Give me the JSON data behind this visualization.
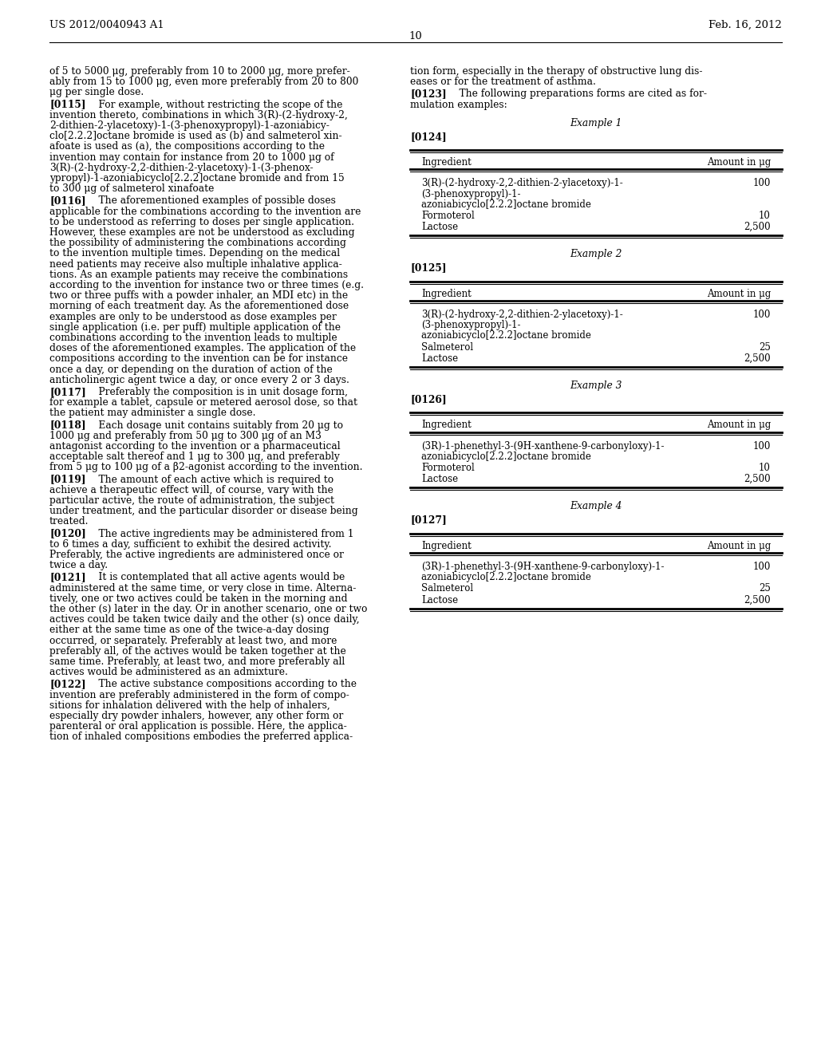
{
  "bg_color": "#ffffff",
  "header_left": "US 2012/0040943 A1",
  "header_right": "Feb. 16, 2012",
  "page_number": "10",
  "intro_lines": [
    "of 5 to 5000 μg, preferably from 10 to 2000 μg, more prefer-",
    "ably from 15 to 1000 μg, even more preferably from 20 to 800",
    "μg per single dose."
  ],
  "left_paragraphs": [
    {
      "tag": "[0115]",
      "lines": [
        "For example, without restricting the scope of the",
        "invention thereto, combinations in which 3(R)-(2-hydroxy-2,",
        "2-dithien-2-ylacetoxy)-1-(3-phenoxypropyl)-1-azoniabicy-",
        "clo[2.2.2]octane bromide is used as (b) and salmeterol xin-",
        "afoate is used as (a), the compositions according to the",
        "invention may contain for instance from 20 to 1000 μg of",
        "3(R)-(2-hydroxy-2,2-dithien-2-ylacetoxy)-1-(3-phenox-",
        "ypropyl)-1-azoniabicyclo[2.2.2]octane bromide and from 15",
        "to 300 μg of salmeterol xinafoate"
      ]
    },
    {
      "tag": "[0116]",
      "lines": [
        "The aforementioned examples of possible doses",
        "applicable for the combinations according to the invention are",
        "to be understood as referring to doses per single application.",
        "However, these examples are not be understood as excluding",
        "the possibility of administering the combinations according",
        "to the invention multiple times. Depending on the medical",
        "need patients may receive also multiple inhalative applica-",
        "tions. As an example patients may receive the combinations",
        "according to the invention for instance two or three times (e.g.",
        "two or three puffs with a powder inhaler, an MDI etc) in the",
        "morning of each treatment day. As the aforementioned dose",
        "examples are only to be understood as dose examples per",
        "single application (i.e. per puff) multiple application of the",
        "combinations according to the invention leads to multiple",
        "doses of the aforementioned examples. The application of the",
        "compositions according to the invention can be for instance",
        "once a day, or depending on the duration of action of the",
        "anticholinergic agent twice a day, or once every 2 or 3 days."
      ]
    },
    {
      "tag": "[0117]",
      "lines": [
        "Preferably the composition is in unit dosage form,",
        "for example a tablet, capsule or metered aerosol dose, so that",
        "the patient may administer a single dose."
      ]
    },
    {
      "tag": "[0118]",
      "lines": [
        "Each dosage unit contains suitably from 20 μg to",
        "1000 μg and preferably from 50 μg to 300 μg of an M3",
        "antagonist according to the invention or a pharmaceutical",
        "acceptable salt thereof and 1 μg to 300 μg, and preferably",
        "from 5 μg to 100 μg of a β2-agonist according to the invention."
      ]
    },
    {
      "tag": "[0119]",
      "lines": [
        "The amount of each active which is required to",
        "achieve a therapeutic effect will, of course, vary with the",
        "particular active, the route of administration, the subject",
        "under treatment, and the particular disorder or disease being",
        "treated."
      ]
    },
    {
      "tag": "[0120]",
      "lines": [
        "The active ingredients may be administered from 1",
        "to 6 times a day, sufficient to exhibit the desired activity.",
        "Preferably, the active ingredients are administered once or",
        "twice a day."
      ]
    },
    {
      "tag": "[0121]",
      "lines": [
        "It is contemplated that all active agents would be",
        "administered at the same time, or very close in time. Alterna-",
        "tively, one or two actives could be taken in the morning and",
        "the other (s) later in the day. Or in another scenario, one or two",
        "actives could be taken twice daily and the other (s) once daily,",
        "either at the same time as one of the twice-a-day dosing",
        "occurred, or separately. Preferably at least two, and more",
        "preferably all, of the actives would be taken together at the",
        "same time. Preferably, at least two, and more preferably all",
        "actives would be administered as an admixture."
      ]
    },
    {
      "tag": "[0122]",
      "lines": [
        "The active substance compositions according to the",
        "invention are preferably administered in the form of compo-",
        "sitions for inhalation delivered with the help of inhalers,",
        "especially dry powder inhalers, however, any other form or",
        "parenteral or oral application is possible. Here, the applica-",
        "tion of inhaled compositions embodies the preferred applica-"
      ]
    }
  ],
  "right_intro_lines": [
    "tion form, especially in the therapy of obstructive lung dis-",
    "eases or for the treatment of asthma."
  ],
  "para_0123_tag": "[0123]",
  "para_0123_lines": [
    "The following preparations forms are cited as for-",
    "mulation examples:"
  ],
  "examples": [
    {
      "title": "Example 1",
      "tag": "[0124]",
      "col1_header": "Ingredient",
      "col2_header": "Amount in μg",
      "rows": [
        {
          "ingredient_lines": [
            "3(R)-(2-hydroxy-2,2-dithien-2-ylacetoxy)-1-",
            "(3-phenoxypropyl)-1-",
            "azoniabicyclo[2.2.2]octane bromide"
          ],
          "amount": "100"
        },
        {
          "ingredient_lines": [
            "Formoterol"
          ],
          "amount": "10"
        },
        {
          "ingredient_lines": [
            "Lactose"
          ],
          "amount": "2,500"
        }
      ]
    },
    {
      "title": "Example 2",
      "tag": "[0125]",
      "col1_header": "Ingredient",
      "col2_header": "Amount in μg",
      "rows": [
        {
          "ingredient_lines": [
            "3(R)-(2-hydroxy-2,2-dithien-2-ylacetoxy)-1-",
            "(3-phenoxypropyl)-1-",
            "azoniabicyclo[2.2.2]octane bromide"
          ],
          "amount": "100"
        },
        {
          "ingredient_lines": [
            "Salmeterol"
          ],
          "amount": "25"
        },
        {
          "ingredient_lines": [
            "Lactose"
          ],
          "amount": "2,500"
        }
      ]
    },
    {
      "title": "Example 3",
      "tag": "[0126]",
      "col1_header": "Ingredient",
      "col2_header": "Amount in μg",
      "rows": [
        {
          "ingredient_lines": [
            "(3R)-1-phenethyl-3-(9H-xanthene-9-carbonyloxy)-1-",
            "azoniabicyclo[2.2.2]octane bromide"
          ],
          "amount": "100"
        },
        {
          "ingredient_lines": [
            "Formoterol"
          ],
          "amount": "10"
        },
        {
          "ingredient_lines": [
            "Lactose"
          ],
          "amount": "2,500"
        }
      ]
    },
    {
      "title": "Example 4",
      "tag": "[0127]",
      "col1_header": "Ingredient",
      "col2_header": "Amount in μg",
      "rows": [
        {
          "ingredient_lines": [
            "(3R)-1-phenethyl-3-(9H-xanthene-9-carbonyloxy)-1-",
            "azoniabicyclo[2.2.2]octane bromide"
          ],
          "amount": "100"
        },
        {
          "ingredient_lines": [
            "Salmeterol"
          ],
          "amount": "25"
        },
        {
          "ingredient_lines": [
            "Lactose"
          ],
          "amount": "2,500"
        }
      ]
    }
  ]
}
